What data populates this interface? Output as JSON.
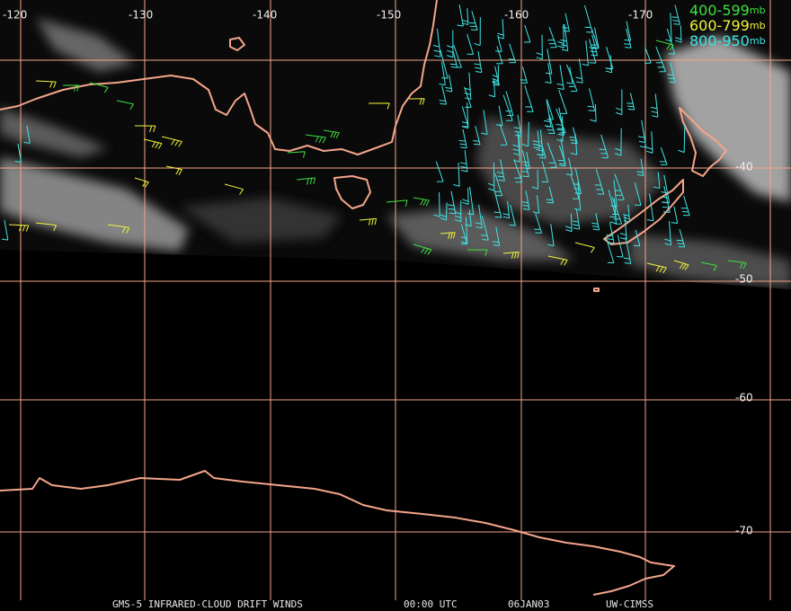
{
  "map": {
    "longitude_labels": [
      "-120",
      "-130",
      "-140",
      "-150",
      "-160",
      "-170"
    ],
    "latitude_labels": [
      "-40",
      "-50",
      "-60",
      "-70"
    ],
    "legend": [
      {
        "label": "400-599",
        "unit": "mb",
        "color": "#3ee03e"
      },
      {
        "label": "600-799",
        "unit": "mb",
        "color": "#f2f23a"
      },
      {
        "label": "800-950",
        "unit": "mb",
        "color": "#3ee6e6"
      }
    ],
    "footer": [
      "GMS-5 INFRARED-CLOUD DRIFT WINDS",
      "00:00 UTC",
      "06JAN03",
      "UW-CIMSS"
    ]
  }
}
